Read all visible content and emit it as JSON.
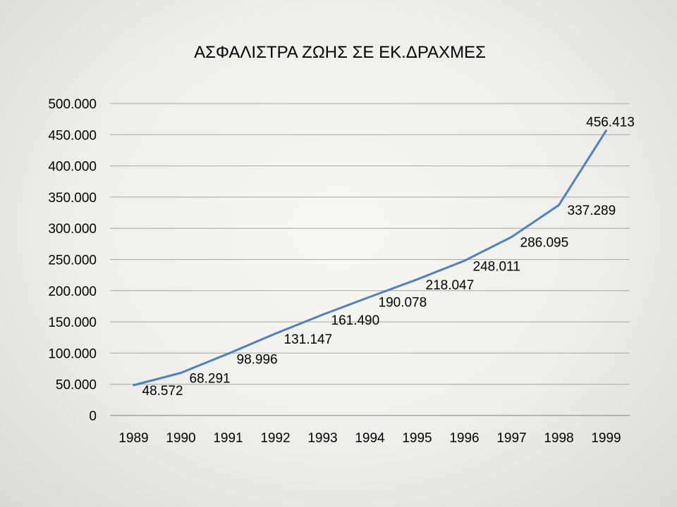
{
  "chart_data": {
    "type": "line",
    "title": "ΑΣΦΑΛΙΣΤΡΑ ΖΩΗΣ ΣΕ ΕΚ.ΔΡΑΧΜΕΣ",
    "xlabel": "",
    "ylabel": "",
    "categories": [
      "1989",
      "1990",
      "1991",
      "1992",
      "1993",
      "1994",
      "1995",
      "1996",
      "1997",
      "1998",
      "1999"
    ],
    "series": [
      {
        "values": [
          48572,
          68291,
          98996,
          131147,
          161490,
          190078,
          218047,
          248011,
          286095,
          337289,
          456413
        ],
        "data_labels": [
          "48.572",
          "68.291",
          "98.996",
          "131.147",
          "161.490",
          "190.078",
          "218.047",
          "248.011",
          "286.095",
          "337.289",
          "456.413"
        ],
        "color": "#4f81bd"
      }
    ],
    "ylim": [
      0,
      500000
    ],
    "y_ticks": [
      0,
      50000,
      100000,
      150000,
      200000,
      250000,
      300000,
      350000,
      400000,
      450000,
      500000
    ],
    "y_tick_labels": [
      "0",
      "50.000",
      "100.000",
      "150.000",
      "200.000",
      "250.000",
      "300.000",
      "350.000",
      "400.000",
      "450.000",
      "500.000"
    ],
    "grid": true,
    "legend": "none"
  }
}
